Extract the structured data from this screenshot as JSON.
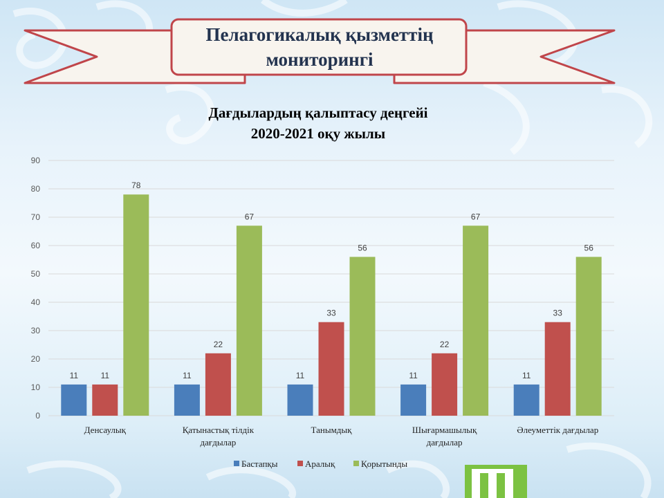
{
  "banner": {
    "line1": "Пелагогикалық қызметтің",
    "line2": "мониторингі"
  },
  "colors": {
    "ribbon_fill": "#f8f4ee",
    "ribbon_stroke": "#c0454a",
    "title_text": "#23334f",
    "accent_icon": "#7cc242"
  },
  "chart_data": {
    "type": "bar",
    "title_line1": "Дағдылардың қалыптасу деңгейі",
    "title_line2": "2020-2021 оқу жылы",
    "categories": [
      [
        "Денсаулық"
      ],
      [
        "Қатынастық тілдік",
        "дағдылар"
      ],
      [
        "Танымдық"
      ],
      [
        "Шығармашылық",
        "дағдылар"
      ],
      [
        "Әлеуметтік  дағдылар"
      ]
    ],
    "series": [
      {
        "name": "Бастапқы",
        "color": "#4a7ebb",
        "values": [
          11,
          11,
          11,
          11,
          11
        ]
      },
      {
        "name": "Аралық",
        "color": "#c0504d",
        "values": [
          11,
          22,
          33,
          22,
          33
        ]
      },
      {
        "name": "Қорытынды",
        "color": "#9bbb59",
        "values": [
          78,
          67,
          56,
          67,
          56
        ]
      }
    ],
    "ylim": [
      0,
      90
    ],
    "yticks": [
      0,
      10,
      20,
      30,
      40,
      50,
      60,
      70,
      80,
      90
    ],
    "grid": true,
    "data_labels": true,
    "legend": "bottom"
  }
}
